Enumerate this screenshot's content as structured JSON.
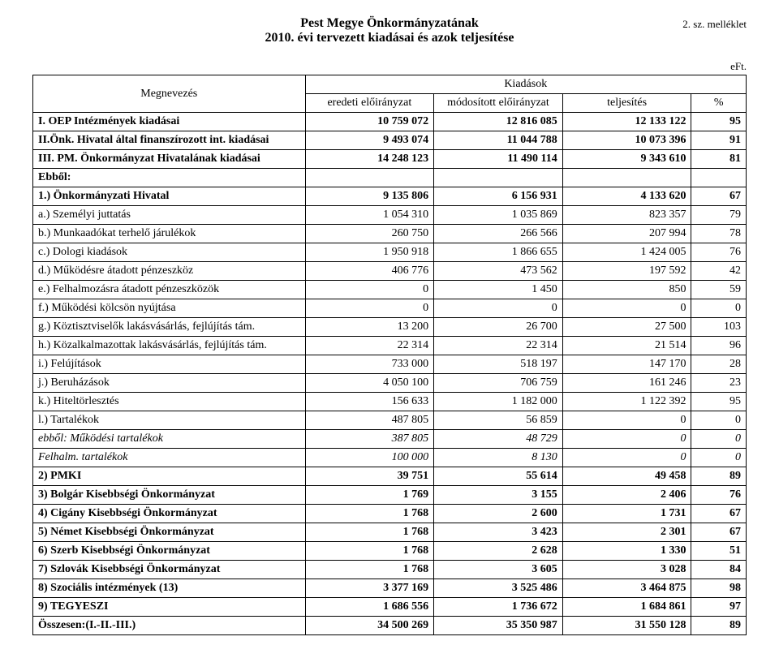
{
  "header": {
    "title_line1": "Pest Megye Önkormányzatának",
    "title_line2": "2010. évi tervezett kiadásai és azok teljesítése",
    "annex": "2. sz. melléklet",
    "unit": "eFt."
  },
  "table": {
    "col_megnevezes": "Megnevezés",
    "col_kiadasok": "Kiadások",
    "col_eredeti": "eredeti előirányzat",
    "col_modositott": "módosított előirányzat",
    "col_teljesites": "teljesítés",
    "col_pct": "%"
  },
  "rows": [
    {
      "name": "I. OEP Intézmények kiadásai",
      "c1": "10 759 072",
      "c2": "12 816 085",
      "c3": "12 133 122",
      "c4": "95",
      "bold": true
    },
    {
      "name": "II.Önk. Hivatal által finanszírozott int. kiadásai",
      "c1": "9 493 074",
      "c2": "11 044 788",
      "c3": "10 073 396",
      "c4": "91",
      "bold": true
    },
    {
      "name": "III. PM. Önkormányzat Hivatalának kiadásai",
      "c1": "14 248 123",
      "c2": "11 490 114",
      "c3": "9 343 610",
      "c4": "81",
      "bold": true
    },
    {
      "name": "Ebből:",
      "c1": "",
      "c2": "",
      "c3": "",
      "c4": "",
      "bold": true
    },
    {
      "name": "1.) Önkormányzati Hivatal",
      "c1": "9 135 806",
      "c2": "6 156 931",
      "c3": "4 133 620",
      "c4": "67",
      "bold": true
    },
    {
      "name": "a.) Személyi juttatás",
      "c1": "1 054 310",
      "c2": "1 035 869",
      "c3": "823 357",
      "c4": "79",
      "indent": 1
    },
    {
      "name": "b.) Munkaadókat terhelő járulékok",
      "c1": "260 750",
      "c2": "266 566",
      "c3": "207 994",
      "c4": "78",
      "indent": 1
    },
    {
      "name": "c.) Dologi kiadások",
      "c1": "1 950 918",
      "c2": "1 866 655",
      "c3": "1 424 005",
      "c4": "76",
      "indent": 1
    },
    {
      "name": "d.) Működésre átadott pénzeszköz",
      "c1": "406 776",
      "c2": "473 562",
      "c3": "197 592",
      "c4": "42",
      "indent": 1
    },
    {
      "name": "e.) Felhalmozásra átadott pénzeszközök",
      "c1": "0",
      "c2": "1 450",
      "c3": "850",
      "c4": "59",
      "indent": 1
    },
    {
      "name": "f.) Működési kölcsön nyújtása",
      "c1": "0",
      "c2": "0",
      "c3": "0",
      "c4": "0",
      "indent": 1
    },
    {
      "name": "g.) Köztisztviselők lakásvásárlás, fejlújítás tám.",
      "c1": "13 200",
      "c2": "26 700",
      "c3": "27 500",
      "c4": "103",
      "indent": 1
    },
    {
      "name": "h.) Közalkalmazottak lakásvásárlás, fejlújítás tám.",
      "c1": "22 314",
      "c2": "22 314",
      "c3": "21 514",
      "c4": "96",
      "indent": 1
    },
    {
      "name": "i.) Felújítások",
      "c1": "733 000",
      "c2": "518 197",
      "c3": "147 170",
      "c4": "28",
      "indent": 1
    },
    {
      "name": "j.) Beruházások",
      "c1": "4 050 100",
      "c2": "706 759",
      "c3": "161 246",
      "c4": "23",
      "indent": 1
    },
    {
      "name": "k.) Hiteltörlesztés",
      "c1": "156 633",
      "c2": "1 182 000",
      "c3": "1 122 392",
      "c4": "95",
      "indent": 1
    },
    {
      "name": "l.) Tartalékok",
      "c1": "487 805",
      "c2": "56 859",
      "c3": "0",
      "c4": "0",
      "indent": 1
    },
    {
      "name": "ebből: Működési tartalékok",
      "c1": "387 805",
      "c2": "48 729",
      "c3": "0",
      "c4": "0",
      "indent": 1,
      "italic": true
    },
    {
      "name": "Felhalm. tartalékok",
      "c1": "100 000",
      "c2": "8 130",
      "c3": "0",
      "c4": "0",
      "indent": 2,
      "italic": true
    },
    {
      "name": "2) PMKI",
      "c1": "39 751",
      "c2": "55 614",
      "c3": "49 458",
      "c4": "89",
      "bold": true
    },
    {
      "name": "3) Bolgár Kisebbségi Önkormányzat",
      "c1": "1 769",
      "c2": "3 155",
      "c3": "2 406",
      "c4": "76",
      "bold": true
    },
    {
      "name": "4) Cigány Kisebbségi Önkormányzat",
      "c1": "1 768",
      "c2": "2 600",
      "c3": "1 731",
      "c4": "67",
      "bold": true
    },
    {
      "name": "5) Német Kisebbségi Önkormányzat",
      "c1": "1 768",
      "c2": "3 423",
      "c3": "2 301",
      "c4": "67",
      "bold": true
    },
    {
      "name": "6) Szerb Kisebbségi Önkormányzat",
      "c1": "1 768",
      "c2": "2 628",
      "c3": "1 330",
      "c4": "51",
      "bold": true
    },
    {
      "name": "7) Szlovák Kisebbségi Önkormányzat",
      "c1": "1 768",
      "c2": "3 605",
      "c3": "3 028",
      "c4": "84",
      "bold": true
    },
    {
      "name": "8) Szociális intézmények (13)",
      "c1": "3 377 169",
      "c2": "3 525 486",
      "c3": "3 464 875",
      "c4": "98",
      "bold": true
    },
    {
      "name": "9) TEGYESZI",
      "c1": "1 686 556",
      "c2": "1 736 672",
      "c3": "1 684 861",
      "c4": "97",
      "bold": true
    },
    {
      "name": "Összesen:(I.-II.-III.)",
      "c1": "34 500 269",
      "c2": "35 350 987",
      "c3": "31 550 128",
      "c4": "89",
      "bold": true
    }
  ]
}
